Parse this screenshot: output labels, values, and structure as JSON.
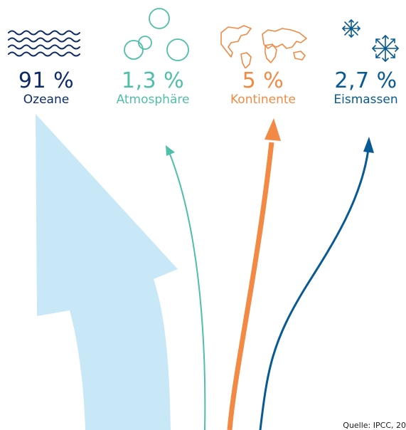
{
  "colors": {
    "ocean": "#0d2a6b",
    "ocean_arrow": "#c8e8f8",
    "atmosphere": "#4fbfa7",
    "continents": "#f28a45",
    "ice": "#075a93"
  },
  "categories": [
    {
      "key": "ocean",
      "percent": "91 %",
      "label": "Ozeane",
      "icon": "waves-icon"
    },
    {
      "key": "atmosphere",
      "percent": "1,3 %",
      "label": "Atmosphäre",
      "icon": "bubbles-icon"
    },
    {
      "key": "continents",
      "percent": "5 %",
      "label": "Kontinente",
      "icon": "world-map-icon"
    },
    {
      "key": "ice",
      "percent": "2,7 %",
      "label": "Eismassen",
      "icon": "snowflake-icon"
    }
  ],
  "source": "Quelle: IPCC, 20"
}
